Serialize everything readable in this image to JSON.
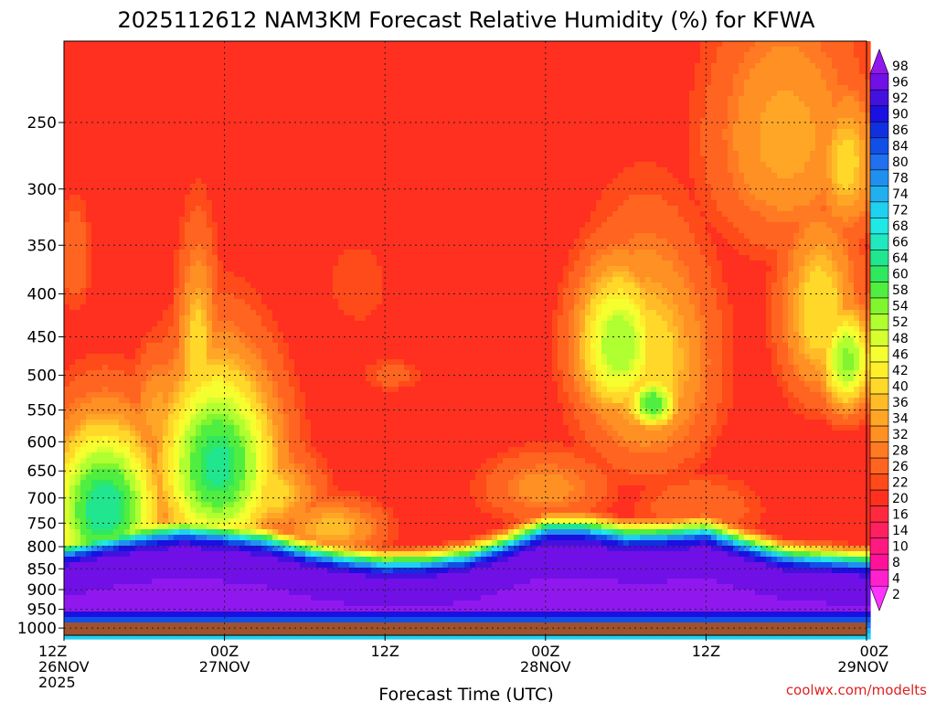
{
  "chart_data": {
    "type": "heatmap",
    "title": "2025112612 NAM3KM Forecast Relative Humidity (%) for KFWA",
    "xlabel": "Forecast Time (UTC)",
    "ylabel": "",
    "x_ticks": [
      {
        "hour": 0,
        "lines": [
          "12Z",
          "26NOV",
          "2025"
        ]
      },
      {
        "hour": 12,
        "lines": [
          "00Z",
          "27NOV"
        ]
      },
      {
        "hour": 24,
        "lines": [
          "12Z"
        ]
      },
      {
        "hour": 36,
        "lines": [
          "00Z",
          "28NOV"
        ]
      },
      {
        "hour": 48,
        "lines": [
          "12Z"
        ]
      },
      {
        "hour": 60,
        "lines": [
          "00Z",
          "29NOV"
        ]
      }
    ],
    "xlim": [
      0,
      60
    ],
    "y_ticks": [
      250,
      300,
      350,
      400,
      450,
      500,
      550,
      600,
      650,
      700,
      750,
      800,
      850,
      900,
      950,
      1000
    ],
    "ylim": [
      200,
      1020
    ],
    "y_scale": "log",
    "y_inverted": true,
    "grid": true,
    "colorbar_levels": [
      2,
      4,
      8,
      10,
      14,
      16,
      20,
      22,
      26,
      28,
      32,
      34,
      36,
      40,
      42,
      46,
      48,
      52,
      54,
      58,
      60,
      64,
      66,
      68,
      72,
      74,
      78,
      80,
      84,
      86,
      90,
      92,
      96,
      98
    ],
    "colorbar_labels": [
      "2",
      "4",
      "8",
      "10",
      "14",
      "16",
      "20",
      "22",
      "26",
      "28",
      "32",
      "34",
      "36",
      "40",
      "42",
      "46",
      "48",
      "52",
      "54",
      "58",
      "60",
      "64",
      "66",
      "68",
      "72",
      "74",
      "78",
      "80",
      "84",
      "86",
      "90",
      "92",
      "96",
      "98"
    ],
    "colorbar_colors": [
      "#ff33ff",
      "#ff22cc",
      "#ff1199",
      "#ff1a80",
      "#ff2060",
      "#ff2a40",
      "#ff3020",
      "#ff4a1a",
      "#ff6420",
      "#ff7a22",
      "#ff9024",
      "#ffa626",
      "#ffbc28",
      "#ffd82a",
      "#ffee2c",
      "#f5ff30",
      "#d6ff30",
      "#b0ff30",
      "#80f530",
      "#50ee40",
      "#30e860",
      "#20e690",
      "#20e8c0",
      "#20e8e6",
      "#20d0f0",
      "#20b0f0",
      "#2090f0",
      "#2070f0",
      "#1050e8",
      "#1030e0",
      "#1a10e0",
      "#4410e0",
      "#7010e6",
      "#9018ee"
    ],
    "ground_color": "#a0522d",
    "surface_pressure": 985,
    "field": {
      "background_rh": 16,
      "upper_rh": 4,
      "blobs": [
        {
          "t": 3,
          "p": 720,
          "rt": 4.2,
          "rp": 160,
          "rh": 64
        },
        {
          "t": 11.5,
          "p": 640,
          "rt": 4.5,
          "rp": 170,
          "rh": 62
        },
        {
          "t": 10,
          "p": 480,
          "rt": 1.6,
          "rp": 140,
          "rh": 40
        },
        {
          "t": 7,
          "p": 560,
          "rt": 2,
          "rp": 100,
          "rh": 34
        },
        {
          "t": 15,
          "p": 690,
          "rt": 4,
          "rp": 80,
          "rh": 40
        },
        {
          "t": 20,
          "p": 760,
          "rt": 4,
          "rp": 60,
          "rh": 36
        },
        {
          "t": 41.5,
          "p": 460,
          "rt": 3.4,
          "rp": 100,
          "rh": 52
        },
        {
          "t": 43.5,
          "p": 480,
          "rt": 5,
          "rp": 150,
          "rh": 40
        },
        {
          "t": 44,
          "p": 540,
          "rt": 2,
          "rp": 40,
          "rh": 58
        },
        {
          "t": 54,
          "p": 260,
          "rt": 6,
          "rp": 90,
          "rh": 34
        },
        {
          "t": 58.5,
          "p": 280,
          "rt": 2.5,
          "rp": 60,
          "rh": 38
        },
        {
          "t": 56.5,
          "p": 420,
          "rt": 3,
          "rp": 110,
          "rh": 40
        },
        {
          "t": 58.5,
          "p": 480,
          "rt": 2,
          "rp": 70,
          "rh": 54
        },
        {
          "t": 0.8,
          "p": 360,
          "rt": 1.3,
          "rp": 60,
          "rh": 26
        },
        {
          "t": 22,
          "p": 390,
          "rt": 3,
          "rp": 60,
          "rh": 22
        },
        {
          "t": 24.5,
          "p": 500,
          "rt": 2.5,
          "rp": 25,
          "rh": 24
        },
        {
          "t": 36,
          "p": 680,
          "rt": 5,
          "rp": 70,
          "rh": 30
        },
        {
          "t": 47.5,
          "p": 720,
          "rt": 5,
          "rp": 70,
          "rh": 26
        }
      ],
      "moist_layer": [
        {
          "t": 0,
          "top": 845
        },
        {
          "t": 3,
          "top": 825
        },
        {
          "t": 6,
          "top": 810
        },
        {
          "t": 9,
          "top": 800
        },
        {
          "t": 12,
          "top": 808
        },
        {
          "t": 15,
          "top": 820
        },
        {
          "t": 18,
          "top": 845
        },
        {
          "t": 21,
          "top": 862
        },
        {
          "t": 24,
          "top": 872
        },
        {
          "t": 27,
          "top": 870
        },
        {
          "t": 30,
          "top": 858
        },
        {
          "t": 33,
          "top": 830
        },
        {
          "t": 36,
          "top": 795
        },
        {
          "t": 39,
          "top": 795
        },
        {
          "t": 42,
          "top": 810
        },
        {
          "t": 45,
          "top": 808
        },
        {
          "t": 48,
          "top": 800
        },
        {
          "t": 51,
          "top": 830
        },
        {
          "t": 54,
          "top": 855
        },
        {
          "t": 57,
          "top": 862
        },
        {
          "t": 60,
          "top": 868
        }
      ]
    }
  },
  "credit": "coolwx.com/modelts"
}
